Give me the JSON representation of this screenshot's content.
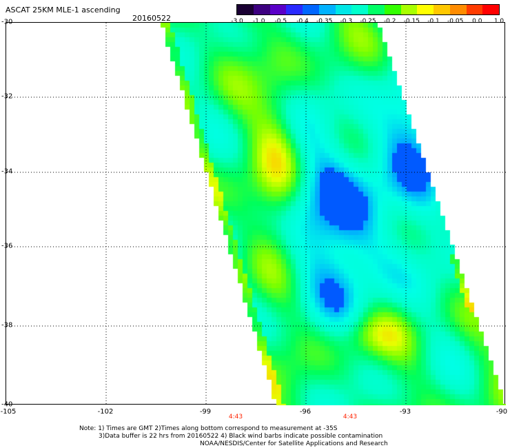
{
  "header": {
    "title": "ASCAT 25KM MLE-1 ascending",
    "date": "20160522"
  },
  "colorbar": {
    "labels": [
      "-3.0",
      "-1.0",
      "-0.5",
      "-0.4",
      "-0.35",
      "-0.3",
      "-0.25",
      "-0.2",
      "-0.15",
      "-0.1",
      "-0.05",
      "0.0",
      "1.0"
    ],
    "colors": [
      "#1a0033",
      "#3d0080",
      "#5a00c8",
      "#2a2aff",
      "#0066ff",
      "#00b2ff",
      "#00e6e6",
      "#00ffcc",
      "#00ff66",
      "#33ff00",
      "#a8ff00",
      "#ffff00",
      "#ffc800",
      "#ff8c00",
      "#ff3c00",
      "#ff0000"
    ]
  },
  "map": {
    "lat_labels": [
      "-30",
      "-32",
      "-34",
      "-36",
      "-38",
      "-40"
    ],
    "lon_labels": [
      "-105",
      "-102",
      "-99",
      "-96",
      "-93",
      "-90"
    ],
    "time_labels": [
      "4:43",
      "4:43"
    ]
  },
  "notes": {
    "line1": "Note: 1) Times are GMT 2)Times along bottom correspond to measurement at -35S",
    "line2": "3)Data buffer is 22 hrs from 20160522 4) Black wind barbs indicate possible contamination",
    "line3": "NOAA/NESDIS/Center for Satellite Applications and Research"
  }
}
